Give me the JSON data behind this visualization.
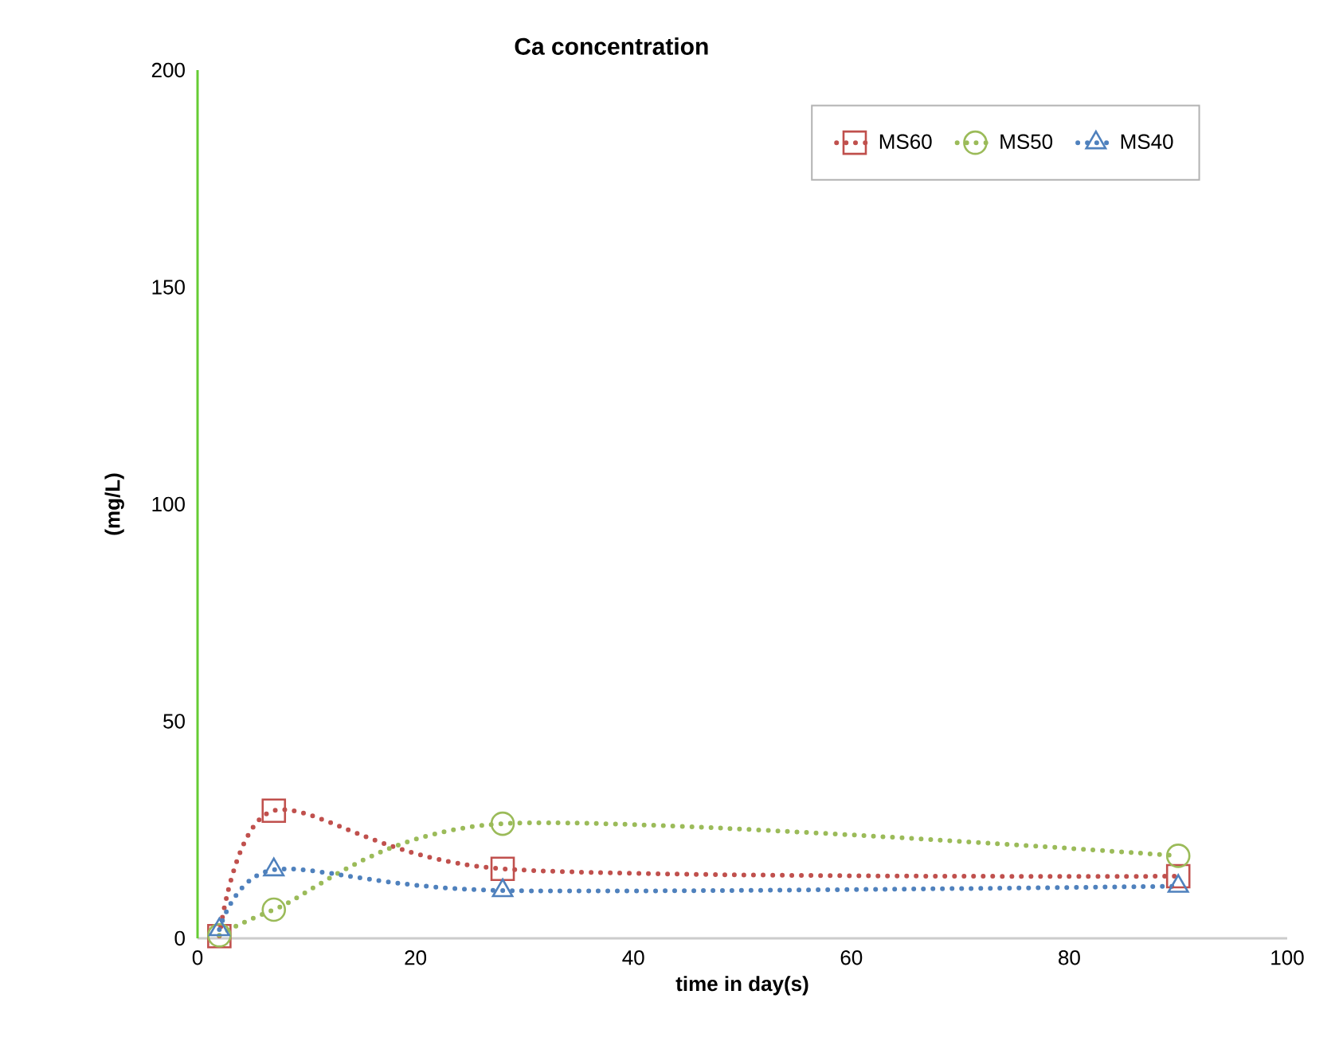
{
  "chart_data": {
    "type": "line",
    "title": "Ca concentration",
    "xlabel": "time in day(s)",
    "ylabel": "(mg/L)",
    "x": [
      2,
      7,
      28,
      90
    ],
    "series": [
      {
        "name": "MS60",
        "color": "#c0504d",
        "marker": "square",
        "values": [
          0.5,
          29.4,
          16,
          14.3
        ]
      },
      {
        "name": "MS50",
        "color": "#9bbb59",
        "marker": "circle",
        "values": [
          0.7,
          6.6,
          26.4,
          19
        ]
      },
      {
        "name": "MS40",
        "color": "#4f81bd",
        "marker": "triangle",
        "values": [
          2,
          15.8,
          11,
          12
        ]
      }
    ],
    "xlim": [
      0,
      100
    ],
    "ylim": [
      0,
      200
    ],
    "xticks": [
      0,
      20,
      40,
      60,
      80,
      100
    ],
    "yticks": [
      0,
      50,
      100,
      150,
      200
    ],
    "line_style": "dotted",
    "grid": false,
    "legend": "top right"
  }
}
